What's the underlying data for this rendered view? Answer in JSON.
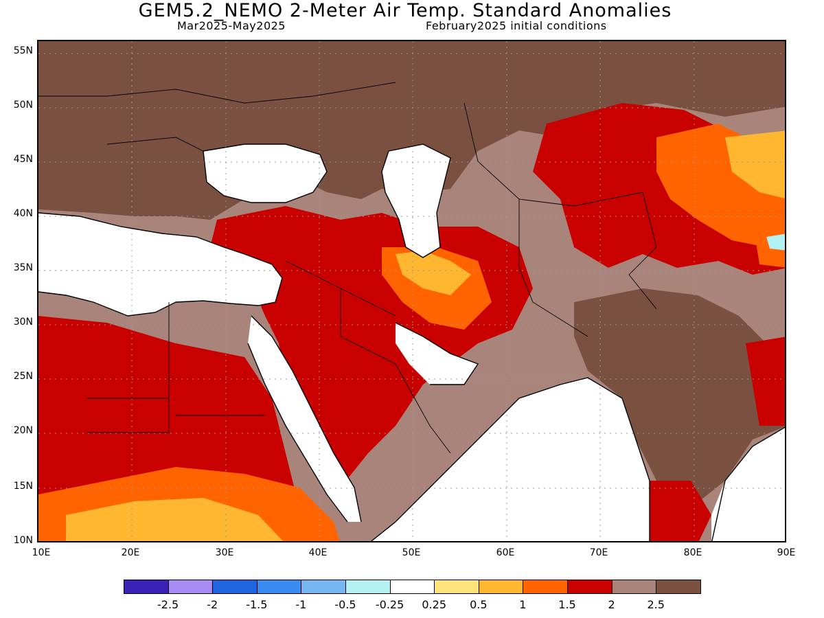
{
  "title": "GEM5.2_NEMO 2-Meter Air Temp. Standard Anomalies",
  "subtitle_left": "Mar2025-May2025",
  "subtitle_right": "February2025 initial conditions",
  "lat_labels": [
    "55N",
    "50N",
    "45N",
    "40N",
    "35N",
    "30N",
    "25N",
    "20N",
    "15N",
    "10N"
  ],
  "lon_labels": [
    "10E",
    "20E",
    "30E",
    "40E",
    "50E",
    "60E",
    "70E",
    "80E",
    "90E"
  ],
  "colorbar": {
    "colors": [
      "#3a22b8",
      "#a78cf5",
      "#1f64e0",
      "#3b8cf0",
      "#76b6f2",
      "#b3f0f2",
      "#ffffff",
      "#ffe47a",
      "#ffb732",
      "#ff6400",
      "#c80000",
      "#a8847a",
      "#7a5040"
    ],
    "labels": [
      "-2.5",
      "-2",
      "-1.5",
      "-1",
      "-0.5",
      "-0.25",
      "0.25",
      "0.5",
      "1",
      "1.5",
      "2",
      "2.5"
    ]
  }
}
